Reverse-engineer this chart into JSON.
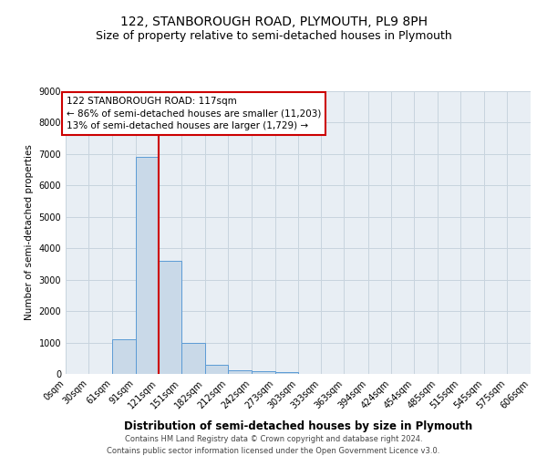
{
  "title": "122, STANBOROUGH ROAD, PLYMOUTH, PL9 8PH",
  "subtitle": "Size of property relative to semi-detached houses in Plymouth",
  "xlabel": "Distribution of semi-detached houses by size in Plymouth",
  "ylabel": "Number of semi-detached properties",
  "bin_edges": [
    0,
    30,
    61,
    91,
    121,
    151,
    182,
    212,
    242,
    273,
    303,
    333,
    363,
    394,
    424,
    454,
    485,
    515,
    545,
    575,
    606
  ],
  "bar_heights": [
    0,
    0,
    1100,
    6900,
    3600,
    1000,
    300,
    130,
    90,
    60,
    0,
    0,
    0,
    0,
    0,
    0,
    0,
    0,
    0,
    0
  ],
  "bar_color": "#c9d9e8",
  "bar_edge_color": "#5b9bd5",
  "red_line_x": 121,
  "red_line_color": "#cc0000",
  "ylim": [
    0,
    9000
  ],
  "yticks": [
    0,
    1000,
    2000,
    3000,
    4000,
    5000,
    6000,
    7000,
    8000,
    9000
  ],
  "annotation_text_line1": "122 STANBOROUGH ROAD: 117sqm",
  "annotation_text_line2": "← 86% of semi-detached houses are smaller (11,203)",
  "annotation_text_line3": "13% of semi-detached houses are larger (1,729) →",
  "footer_line1": "Contains HM Land Registry data © Crown copyright and database right 2024.",
  "footer_line2": "Contains public sector information licensed under the Open Government Licence v3.0.",
  "background_color": "#e8eef4",
  "grid_color": "#c8d4de",
  "title_fontsize": 10,
  "subtitle_fontsize": 9,
  "tick_label_fontsize": 7,
  "ylabel_fontsize": 7.5,
  "xlabel_fontsize": 8.5,
  "annotation_fontsize": 7.5,
  "footer_fontsize": 6
}
